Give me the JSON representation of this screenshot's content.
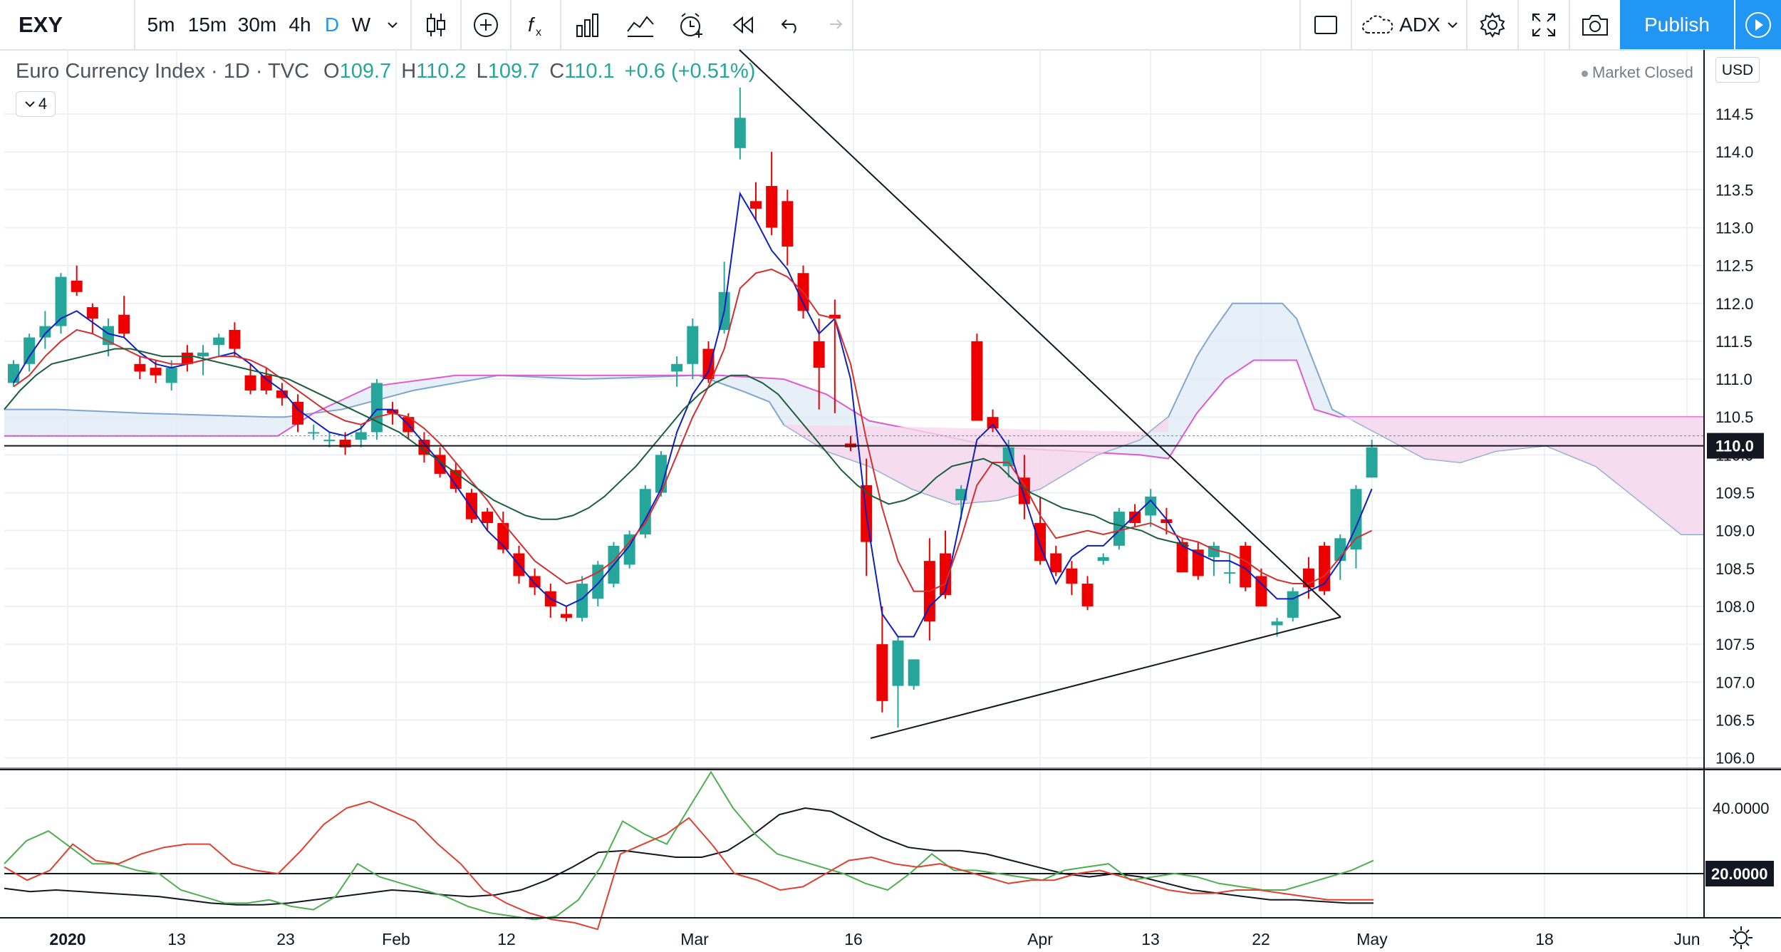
{
  "toolbar": {
    "symbol": "EXY",
    "intervals": [
      "5m",
      "15m",
      "30m",
      "4h",
      "D",
      "W"
    ],
    "active_interval": "D",
    "indicator_name": "ADX",
    "publish_label": "Publish",
    "icons": [
      "chevron-down-icon",
      "candles-icon",
      "plus-circle-icon",
      "function-icon",
      "bars-icon",
      "compare-icon",
      "alert-icon",
      "replay-icon",
      "undo-icon",
      "redo-icon",
      "rectangle-icon",
      "cloud-icon",
      "gear-icon",
      "fullscreen-icon",
      "camera-icon",
      "play-icon"
    ]
  },
  "legend": {
    "title": "Euro Currency Index · 1D · TVC",
    "o_label": "O",
    "o_value": "109.7",
    "h_label": "H",
    "h_value": "110.2",
    "l_label": "L",
    "l_value": "109.7",
    "c_label": "C",
    "c_value": "110.1",
    "change": "+0.6 (+0.51%)",
    "collapse_count": "4"
  },
  "status": {
    "market": "Market Closed",
    "currency": "USD"
  },
  "colors": {
    "up": "#26a69a",
    "down": "#ef0000",
    "accent": "#2196f3",
    "conversion": "#0d1fbf",
    "base": "#d32f2f",
    "lagging": "#1b5e3b",
    "kumo_up": "#dfe9f5",
    "kumo_down": "#f9d7ec"
  },
  "price_axis": {
    "labels": [
      "114.5",
      "114.0",
      "113.5",
      "113.0",
      "112.5",
      "112.0",
      "111.5",
      "111.0",
      "110.5",
      "110.0",
      "109.5",
      "109.0",
      "108.5",
      "108.0",
      "107.5",
      "107.0",
      "106.5",
      "106.0"
    ],
    "current_price": "110.0",
    "line_price": 110.12
  },
  "adx_axis": {
    "labels": [
      "40.0000",
      "20.0000"
    ],
    "level": 20
  },
  "time_axis": {
    "labels": [
      "2020",
      "13",
      "23",
      "Feb",
      "12",
      "Mar",
      "16",
      "Apr",
      "13",
      "22",
      "May",
      "18",
      "Jun"
    ]
  },
  "chart_data": {
    "type": "candlestick",
    "series": [
      {
        "name": "EXY",
        "ohlc": [
          [
            110.95,
            111.25,
            110.9,
            111.2
          ],
          [
            111.2,
            111.6,
            111.1,
            111.55
          ],
          [
            111.55,
            111.9,
            111.4,
            111.7
          ],
          [
            111.7,
            112.4,
            111.6,
            112.35
          ],
          [
            112.3,
            112.5,
            112.1,
            112.15
          ],
          [
            111.95,
            112.0,
            111.6,
            111.8
          ],
          [
            111.45,
            111.8,
            111.3,
            111.7
          ],
          [
            111.85,
            112.1,
            111.55,
            111.6
          ],
          [
            111.2,
            111.3,
            111.0,
            111.1
          ],
          [
            111.15,
            111.25,
            110.95,
            111.05
          ],
          [
            110.95,
            111.25,
            110.85,
            111.15
          ],
          [
            111.35,
            111.45,
            111.1,
            111.2
          ],
          [
            111.3,
            111.45,
            111.05,
            111.35
          ],
          [
            111.45,
            111.6,
            111.3,
            111.55
          ],
          [
            111.65,
            111.75,
            111.3,
            111.4
          ],
          [
            111.05,
            111.2,
            110.8,
            110.85
          ],
          [
            111.05,
            111.15,
            110.8,
            110.85
          ],
          [
            110.85,
            110.95,
            110.65,
            110.75
          ],
          [
            110.7,
            110.8,
            110.3,
            110.4
          ],
          [
            110.3,
            110.4,
            110.2,
            110.3
          ],
          [
            110.2,
            110.3,
            110.1,
            110.2
          ],
          [
            110.2,
            110.3,
            110.0,
            110.1
          ],
          [
            110.2,
            110.4,
            110.1,
            110.3
          ],
          [
            110.3,
            111.0,
            110.2,
            110.95
          ],
          [
            110.6,
            110.7,
            110.4,
            110.55
          ],
          [
            110.5,
            110.55,
            110.2,
            110.3
          ],
          [
            110.2,
            110.3,
            109.9,
            110.0
          ],
          [
            110.0,
            110.1,
            109.7,
            109.75
          ],
          [
            109.8,
            109.9,
            109.5,
            109.55
          ],
          [
            109.5,
            109.55,
            109.1,
            109.15
          ],
          [
            109.25,
            109.3,
            109.0,
            109.1
          ],
          [
            109.1,
            109.25,
            108.7,
            108.75
          ],
          [
            108.7,
            108.8,
            108.3,
            108.4
          ],
          [
            108.4,
            108.5,
            108.15,
            108.25
          ],
          [
            108.2,
            108.3,
            107.85,
            108.0
          ],
          [
            107.9,
            108.0,
            107.8,
            107.85
          ],
          [
            107.85,
            108.4,
            107.8,
            108.3
          ],
          [
            108.1,
            108.6,
            108.0,
            108.55
          ],
          [
            108.3,
            108.85,
            108.25,
            108.8
          ],
          [
            108.55,
            109.0,
            108.5,
            108.95
          ],
          [
            108.95,
            109.6,
            108.9,
            109.55
          ],
          [
            109.5,
            110.05,
            109.45,
            110.0
          ],
          [
            111.1,
            111.3,
            110.9,
            111.2
          ],
          [
            111.2,
            111.8,
            111.0,
            111.7
          ],
          [
            111.4,
            111.5,
            110.95,
            111.0
          ],
          [
            111.65,
            112.55,
            111.6,
            112.15
          ],
          [
            114.05,
            114.85,
            113.9,
            114.45
          ],
          [
            113.35,
            113.6,
            113.1,
            113.25
          ],
          [
            113.55,
            114.0,
            112.9,
            113.0
          ],
          [
            113.35,
            113.5,
            112.5,
            112.75
          ],
          [
            112.4,
            112.5,
            111.8,
            111.9
          ],
          [
            111.5,
            111.8,
            110.6,
            111.15
          ],
          [
            111.85,
            112.05,
            110.55,
            111.8
          ],
          [
            110.15,
            110.25,
            110.05,
            110.1
          ],
          [
            109.6,
            109.95,
            108.4,
            108.85
          ],
          [
            107.5,
            108.0,
            106.6,
            106.75
          ],
          [
            106.95,
            107.6,
            106.4,
            107.55
          ],
          [
            106.95,
            107.3,
            106.9,
            107.3
          ],
          [
            108.6,
            108.9,
            107.55,
            107.8
          ],
          [
            108.7,
            109.0,
            108.1,
            108.15
          ],
          [
            109.4,
            109.6,
            109.15,
            109.55
          ],
          [
            111.5,
            111.6,
            110.5,
            110.45
          ],
          [
            110.5,
            110.6,
            110.3,
            110.35
          ],
          [
            109.85,
            110.2,
            109.7,
            110.1
          ],
          [
            109.7,
            110.0,
            109.15,
            109.35
          ],
          [
            109.1,
            109.45,
            108.55,
            108.6
          ],
          [
            108.7,
            108.8,
            108.4,
            108.45
          ],
          [
            108.5,
            108.6,
            108.15,
            108.3
          ],
          [
            108.3,
            108.4,
            107.95,
            108.0
          ],
          [
            108.6,
            108.7,
            108.55,
            108.65
          ],
          [
            108.8,
            109.3,
            108.75,
            109.25
          ],
          [
            109.25,
            109.35,
            109.05,
            109.1
          ],
          [
            109.2,
            109.55,
            109.05,
            109.45
          ],
          [
            109.15,
            109.3,
            108.95,
            109.1
          ],
          [
            108.85,
            108.9,
            108.45,
            108.45
          ],
          [
            108.75,
            108.85,
            108.35,
            108.4
          ],
          [
            108.65,
            108.85,
            108.4,
            108.8
          ],
          [
            108.45,
            108.7,
            108.3,
            108.45
          ],
          [
            108.8,
            108.85,
            108.2,
            108.25
          ],
          [
            108.4,
            108.5,
            108.0,
            108.0
          ],
          [
            107.75,
            107.85,
            107.6,
            107.8
          ],
          [
            107.85,
            108.25,
            107.8,
            108.2
          ],
          [
            108.5,
            108.65,
            108.1,
            108.25
          ],
          [
            108.8,
            108.85,
            108.15,
            108.2
          ],
          [
            108.6,
            108.95,
            108.35,
            108.9
          ],
          [
            108.75,
            109.6,
            108.5,
            109.55
          ],
          [
            109.7,
            110.2,
            109.7,
            110.1
          ]
        ]
      },
      {
        "name": "Tenkan",
        "values": [
          110.95,
          111.3,
          111.6,
          111.8,
          111.9,
          111.75,
          111.6,
          111.55,
          111.35,
          111.2,
          111.15,
          111.2,
          111.25,
          111.3,
          111.35,
          111.2,
          111.0,
          110.85,
          110.6,
          110.45,
          110.3,
          110.25,
          110.35,
          110.6,
          110.6,
          110.4,
          110.15,
          109.9,
          109.6,
          109.3,
          109.0,
          108.8,
          108.55,
          108.3,
          108.1,
          108.0,
          108.1,
          108.3,
          108.55,
          108.8,
          109.15,
          109.55,
          110.3,
          110.8,
          111.1,
          111.9,
          113.45,
          113.1,
          112.7,
          112.45,
          112.0,
          111.6,
          111.8,
          111.0,
          109.2,
          107.9,
          107.6,
          107.6,
          108.0,
          108.2,
          109.2,
          110.2,
          110.4,
          110.1,
          109.45,
          108.8,
          108.3,
          108.65,
          108.8,
          108.8,
          109.0,
          109.2,
          109.4,
          109.15,
          108.8,
          108.7,
          108.6,
          108.6,
          108.5,
          108.3,
          108.1,
          108.1,
          108.2,
          108.3,
          108.6,
          109.05,
          109.55
        ]
      },
      {
        "name": "Kijun",
        "values": [
          110.9,
          111.05,
          111.3,
          111.5,
          111.65,
          111.6,
          111.5,
          111.4,
          111.3,
          111.25,
          111.2,
          111.2,
          111.25,
          111.3,
          111.3,
          111.25,
          111.15,
          111.0,
          110.85,
          110.7,
          110.55,
          110.45,
          110.4,
          110.5,
          110.55,
          110.5,
          110.35,
          110.15,
          109.9,
          109.65,
          109.4,
          109.1,
          108.85,
          108.6,
          108.45,
          108.3,
          108.35,
          108.45,
          108.6,
          108.85,
          109.1,
          109.5,
          110.0,
          110.5,
          110.9,
          111.4,
          112.2,
          112.4,
          112.45,
          112.35,
          112.15,
          111.85,
          111.8,
          111.2,
          110.2,
          109.3,
          108.6,
          108.2,
          108.2,
          108.3,
          108.9,
          109.6,
          109.9,
          109.9,
          109.6,
          109.2,
          108.9,
          108.95,
          109.0,
          108.95,
          109.0,
          109.05,
          109.1,
          109.0,
          108.9,
          108.85,
          108.75,
          108.7,
          108.6,
          108.45,
          108.35,
          108.3,
          108.3,
          108.4,
          108.65,
          108.9,
          109.0
        ]
      },
      {
        "name": "Lagging",
        "values": [
          110.6,
          110.85,
          111.05,
          111.2,
          111.25,
          111.3,
          111.35,
          111.4,
          111.4,
          111.35,
          111.3,
          111.3,
          111.3,
          111.25,
          111.2,
          111.15,
          111.1,
          111.05,
          111.0,
          110.9,
          110.8,
          110.7,
          110.6,
          110.5,
          110.4,
          110.3,
          110.15,
          110.0,
          109.85,
          109.7,
          109.55,
          109.4,
          109.3,
          109.2,
          109.15,
          109.15,
          109.2,
          109.3,
          109.45,
          109.65,
          109.85,
          110.1,
          110.35,
          110.6,
          110.8,
          110.95,
          111.05,
          111.05,
          110.95,
          110.8,
          110.55,
          110.3,
          110.05,
          109.8,
          109.6,
          109.45,
          109.35,
          109.4,
          109.5,
          109.7,
          109.85,
          109.9,
          109.95,
          109.85,
          109.65,
          109.5,
          109.4,
          109.3,
          109.25,
          109.2,
          109.1,
          109.05,
          109.0,
          108.9,
          108.85,
          108.8
        ]
      },
      {
        "name": "ADX",
        "values": [
          15.5,
          14.5,
          15,
          14.5,
          14,
          13.5,
          13,
          12,
          11,
          10.5,
          10.5,
          11,
          12,
          13,
          14,
          15,
          14.5,
          13.5,
          13,
          13.5,
          15,
          18,
          22,
          26.5,
          27,
          26,
          25,
          25,
          27,
          32,
          38,
          40,
          39,
          35,
          31,
          28,
          27,
          27,
          26,
          24,
          22,
          20,
          19,
          20,
          19,
          17,
          15,
          14,
          13,
          12,
          12,
          11.5,
          11,
          11
        ]
      },
      {
        "name": "+DI",
        "values": [
          23,
          30,
          33,
          28,
          23,
          23,
          21,
          20,
          15,
          13,
          11,
          11,
          12,
          10,
          9,
          13,
          23,
          19,
          17,
          15,
          13,
          10,
          8,
          7,
          6,
          7,
          12,
          22,
          36,
          32,
          29,
          40,
          51,
          40,
          32,
          26,
          24,
          22,
          20,
          17,
          15,
          20,
          26,
          21,
          21,
          20,
          19,
          18,
          21,
          22,
          23,
          18,
          19,
          20,
          19,
          17,
          16,
          15,
          15,
          17,
          19,
          21,
          24
        ]
      },
      {
        "name": "-DI",
        "values": [
          22,
          18,
          21,
          29,
          24,
          23,
          26,
          28,
          29,
          29,
          23,
          21,
          20,
          27,
          35,
          40,
          42,
          39,
          36,
          29,
          23,
          15,
          11,
          8,
          6,
          5,
          3,
          26,
          29,
          32,
          37,
          29,
          20,
          18,
          15,
          16,
          20,
          24,
          25,
          23,
          22,
          23,
          21,
          19,
          17,
          18,
          18,
          20,
          21,
          19,
          17,
          15,
          14,
          14,
          15,
          15,
          14,
          13,
          12,
          12,
          12
        ]
      }
    ]
  }
}
